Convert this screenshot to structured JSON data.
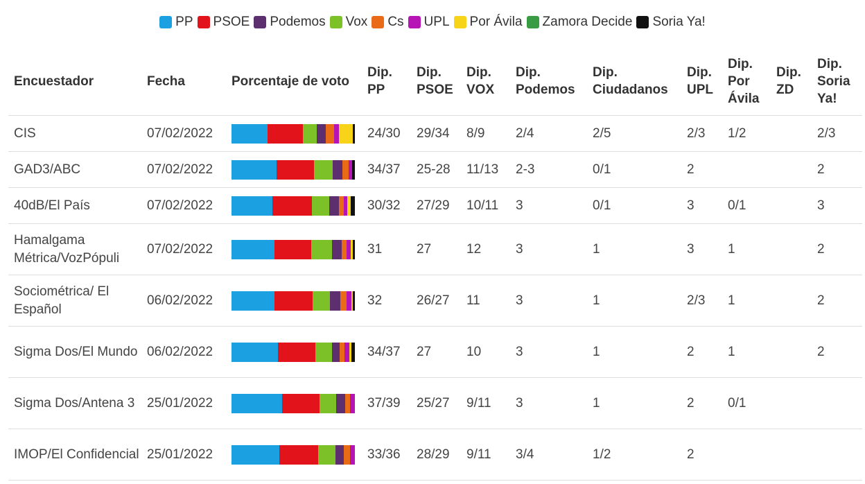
{
  "chart_data": {
    "type": "table",
    "series": [
      {
        "name": "PP",
        "color": "#1ba0e1"
      },
      {
        "name": "PSOE",
        "color": "#e3131b"
      },
      {
        "name": "Podemos",
        "color": "#5e2f6e"
      },
      {
        "name": "Vox",
        "color": "#7cc128"
      },
      {
        "name": "Cs",
        "color": "#ea6b17"
      },
      {
        "name": "UPL",
        "color": "#b714b5"
      },
      {
        "name": "Por Ávila",
        "color": "#f7d417"
      },
      {
        "name": "Zamora Decide",
        "color": "#3a9b45"
      },
      {
        "name": "Soria Ya!",
        "color": "#111111"
      }
    ],
    "columns": [
      {
        "key": "pollster",
        "label": "Encuestador"
      },
      {
        "key": "date",
        "label": "Fecha"
      },
      {
        "key": "vote",
        "label": "Porcentaje de voto"
      },
      {
        "key": "pp",
        "label": "Dip. PP"
      },
      {
        "key": "psoe",
        "label": "Dip. PSOE"
      },
      {
        "key": "vox",
        "label": "Dip. VOX"
      },
      {
        "key": "podemos",
        "label": "Dip. Podemos"
      },
      {
        "key": "cs",
        "label": "Dip. Ciudadanos"
      },
      {
        "key": "upl",
        "label": "Dip. UPL"
      },
      {
        "key": "avila",
        "label": "Dip. Por Ávila"
      },
      {
        "key": "zd",
        "label": "Dip. ZD"
      },
      {
        "key": "soria",
        "label": "Dip. Soria Ya!"
      }
    ],
    "rows": [
      {
        "pollster": "CIS",
        "date": "07/02/2022",
        "pp": "24/30",
        "psoe": "29/34",
        "vox": "8/9",
        "podemos": "2/4",
        "cs": "2/5",
        "upl": "2/3",
        "avila": "1/2",
        "zd": "",
        "soria": "2/3",
        "vote": [
          {
            "party": "PP",
            "value": 28.5
          },
          {
            "party": "PSOE",
            "value": 28.5
          },
          {
            "party": "Vox",
            "value": 11
          },
          {
            "party": "Podemos",
            "value": 7
          },
          {
            "party": "Cs",
            "value": 7
          },
          {
            "party": "UPL",
            "value": 4
          },
          {
            "party": "Por Ávila",
            "value": 11
          },
          {
            "party": "Soria Ya!",
            "value": 1.5
          }
        ]
      },
      {
        "pollster": "GAD3/ABC",
        "date": "07/02/2022",
        "pp": "34/37",
        "psoe": "25-28",
        "vox": "11/13",
        "podemos": "2-3",
        "cs": "0/1",
        "upl": "2",
        "avila": "",
        "zd": "",
        "soria": "2",
        "vote": [
          {
            "party": "PP",
            "value": 36.5
          },
          {
            "party": "PSOE",
            "value": 30.5
          },
          {
            "party": "Vox",
            "value": 15
          },
          {
            "party": "Podemos",
            "value": 8
          },
          {
            "party": "Cs",
            "value": 5
          },
          {
            "party": "UPL",
            "value": 3
          },
          {
            "party": "Soria Ya!",
            "value": 2
          }
        ]
      },
      {
        "pollster": "40dB/El País",
        "date": "07/02/2022",
        "pp": "30/32",
        "psoe": "27/29",
        "vox": "10/11",
        "podemos": "3",
        "cs": "0/1",
        "upl": "3",
        "avila": "0/1",
        "zd": "",
        "soria": "3",
        "vote": [
          {
            "party": "PP",
            "value": 33
          },
          {
            "party": "PSOE",
            "value": 32
          },
          {
            "party": "Vox",
            "value": 14
          },
          {
            "party": "Podemos",
            "value": 8
          },
          {
            "party": "Cs",
            "value": 4
          },
          {
            "party": "UPL",
            "value": 3
          },
          {
            "party": "Por Ávila",
            "value": 2.5
          },
          {
            "party": "Soria Ya!",
            "value": 3.5
          }
        ]
      },
      {
        "pollster": "Hamalgama Métrica/VozPópuli",
        "date": "07/02/2022",
        "pp": "31",
        "psoe": "27",
        "vox": "12",
        "podemos": "3",
        "cs": "1",
        "upl": "3",
        "avila": "1",
        "zd": "",
        "soria": "2",
        "vote": [
          {
            "party": "PP",
            "value": 35
          },
          {
            "party": "PSOE",
            "value": 29.5
          },
          {
            "party": "Vox",
            "value": 17
          },
          {
            "party": "Podemos",
            "value": 8
          },
          {
            "party": "Cs",
            "value": 4
          },
          {
            "party": "UPL",
            "value": 3
          },
          {
            "party": "Por Ávila",
            "value": 2
          },
          {
            "party": "Soria Ya!",
            "value": 1.5
          }
        ]
      },
      {
        "pollster": "Sociométrica/ El Español",
        "date": "06/02/2022",
        "pp": "32",
        "psoe": "26/27",
        "vox": "11",
        "podemos": "3",
        "cs": "1",
        "upl": "2/3",
        "avila": "1",
        "zd": "",
        "soria": "2",
        "vote": [
          {
            "party": "PP",
            "value": 35
          },
          {
            "party": "PSOE",
            "value": 30.5
          },
          {
            "party": "Vox",
            "value": 14.5
          },
          {
            "party": "Podemos",
            "value": 8
          },
          {
            "party": "Cs",
            "value": 5
          },
          {
            "party": "UPL",
            "value": 4
          },
          {
            "party": "Por Ávila",
            "value": 1.5
          },
          {
            "party": "Soria Ya!",
            "value": 1.5
          }
        ]
      },
      {
        "pollster": "Sigma Dos/El Mundo",
        "date": "06/02/2022",
        "pp": "34/37",
        "psoe": "27",
        "vox": "10",
        "podemos": "3",
        "cs": "1",
        "upl": "2",
        "avila": "1",
        "zd": "",
        "soria": "2",
        "vote": [
          {
            "party": "PP",
            "value": 37.5
          },
          {
            "party": "PSOE",
            "value": 30.5
          },
          {
            "party": "Vox",
            "value": 13.5
          },
          {
            "party": "Podemos",
            "value": 6
          },
          {
            "party": "Cs",
            "value": 4
          },
          {
            "party": "UPL",
            "value": 4
          },
          {
            "party": "Por Ávila",
            "value": 1.5
          },
          {
            "party": "Soria Ya!",
            "value": 3
          }
        ]
      },
      {
        "pollster": "Sigma Dos/Antena 3",
        "date": "25/01/2022",
        "pp": "37/39",
        "psoe": "25/27",
        "vox": "9/11",
        "podemos": "3",
        "cs": "1",
        "upl": "2",
        "avila": "0/1",
        "zd": "",
        "soria": "",
        "vote": [
          {
            "party": "PP",
            "value": 41
          },
          {
            "party": "PSOE",
            "value": 30
          },
          {
            "party": "Vox",
            "value": 13.5
          },
          {
            "party": "Podemos",
            "value": 7
          },
          {
            "party": "Cs",
            "value": 4
          },
          {
            "party": "UPL",
            "value": 4
          }
        ]
      },
      {
        "pollster": "IMOP/El Confidencial",
        "date": "25/01/2022",
        "pp": "33/36",
        "psoe": "28/29",
        "vox": "9/11",
        "podemos": "3/4",
        "cs": "1/2",
        "upl": "2",
        "avila": "",
        "zd": "",
        "soria": "",
        "vote": [
          {
            "party": "PP",
            "value": 38.5
          },
          {
            "party": "PSOE",
            "value": 31
          },
          {
            "party": "Vox",
            "value": 14
          },
          {
            "party": "Podemos",
            "value": 6.5
          },
          {
            "party": "Cs",
            "value": 5
          },
          {
            "party": "UPL",
            "value": 4
          }
        ]
      }
    ]
  }
}
